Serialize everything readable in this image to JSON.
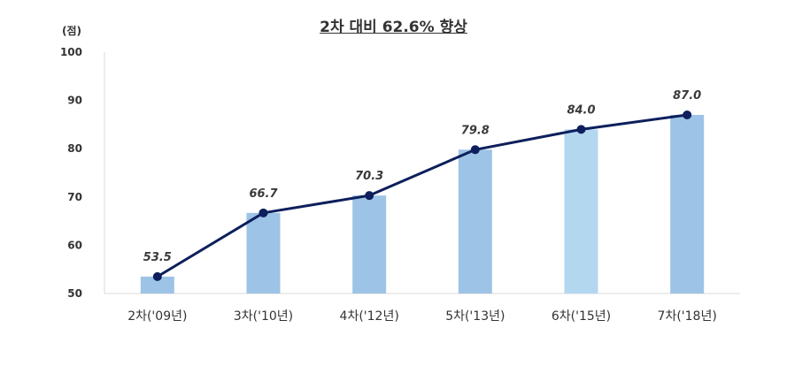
{
  "chart_data": {
    "type": "bar",
    "title": "2차 대비 62.6% 향상",
    "unit": "(점)",
    "categories": [
      "2차('09년)",
      "3차('10년)",
      "4차('12년)",
      "5차('13년)",
      "6차('15년)",
      "7차('18년)"
    ],
    "values": [
      53.5,
      66.7,
      70.3,
      79.8,
      84.0,
      87.0
    ],
    "value_labels": [
      "53.5",
      "66.7",
      "70.3",
      "79.8",
      "84.0",
      "87.0"
    ],
    "yticks": [
      "100",
      "90",
      "80",
      "70",
      "60",
      "50"
    ],
    "ylim": [
      50,
      100
    ],
    "overlay_line": true,
    "grid": false,
    "legend": "none",
    "colors": {
      "bar": "#9dc3e6",
      "bar_highlight": "#b4d7f0",
      "line": "#0d1f5c",
      "axis": "#d9d9d9"
    }
  }
}
